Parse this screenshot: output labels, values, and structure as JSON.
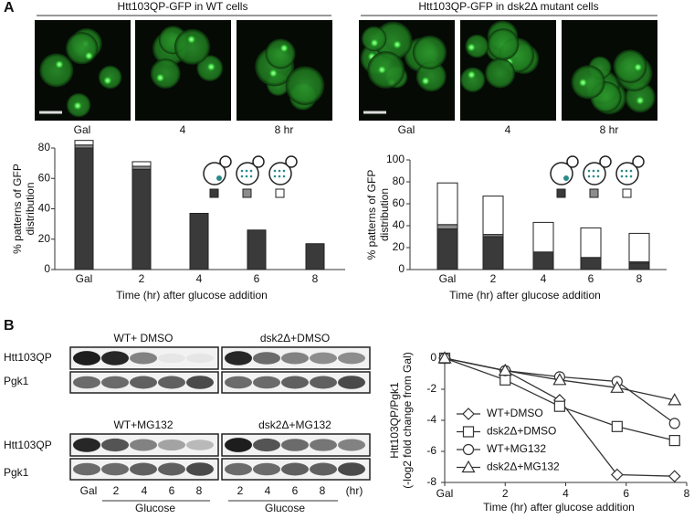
{
  "panels": [
    "A",
    "B"
  ],
  "panel_a": {
    "wt_title": "Htt103QP-GFP in WT cells",
    "mutant_title": "Htt103QP-GFP in dsk2Δ mutant cells",
    "wt_image_labels": [
      "Gal",
      "4",
      "8 hr"
    ],
    "mutant_image_labels": [
      "Gal",
      "4",
      "8 hr"
    ]
  },
  "panel_b": {
    "blot_titles": [
      "WT+ DMSO",
      "dsk2Δ+DMSO",
      "WT+MG132",
      "dsk2Δ+MG132"
    ],
    "row_labels": [
      "Htt103QP",
      "Pgk1",
      "Htt103QP",
      "Pgk1"
    ],
    "lanes_left": [
      "Gal",
      "2",
      "4",
      "6",
      "8"
    ],
    "lanes_right": [
      "2",
      "4",
      "6",
      "8",
      "(hr)"
    ],
    "glucose_labels": [
      "Glucose",
      "Glucose"
    ]
  },
  "chart_data": [
    {
      "type": "stacked_bar",
      "ylabel": [
        "% patterns of GFP",
        "distribution"
      ],
      "xlabel": "Time (hr) after glucose addition",
      "categories": [
        "Gal",
        "2",
        "4",
        "6",
        "8"
      ],
      "series": [
        {
          "color": "#3a3a3a",
          "values": [
            80,
            66,
            37,
            26,
            17
          ]
        },
        {
          "color": "#8c8c8c",
          "values": [
            2,
            2,
            0,
            0,
            0
          ]
        },
        {
          "color": "#ffffff",
          "values": [
            3,
            3,
            0,
            0,
            0
          ]
        }
      ],
      "ylim": [
        0,
        80
      ],
      "yticks": [
        0,
        20,
        40,
        60,
        80
      ]
    },
    {
      "type": "stacked_bar",
      "ylabel": [
        "% patterns of GFP",
        "distribution"
      ],
      "xlabel": "Time (hr) after glucose addition",
      "categories": [
        "Gal",
        "2",
        "4",
        "6",
        "8"
      ],
      "series": [
        {
          "color": "#3a3a3a",
          "values": [
            37,
            30,
            16,
            11,
            6
          ]
        },
        {
          "color": "#8c8c8c",
          "values": [
            4,
            2,
            0,
            0,
            1
          ]
        },
        {
          "color": "#ffffff",
          "values": [
            38,
            35,
            27,
            27,
            26
          ]
        }
      ],
      "ylim": [
        0,
        100
      ],
      "yticks": [
        0,
        20,
        40,
        60,
        80,
        100
      ]
    },
    {
      "type": "line",
      "ylabel": [
        "Htt103QP/Pgk1",
        "(-log2 fold change from Gal)"
      ],
      "xlabel": "Time (hr) after glucose addition",
      "x": [
        0,
        2,
        3.8,
        5.7,
        7.6
      ],
      "series": [
        {
          "name": "WT+DMSO",
          "marker": "diamond",
          "color": "#333333",
          "values": [
            0,
            -0.8,
            -2.7,
            -7.5,
            -7.6
          ]
        },
        {
          "name": "dsk2Δ+DMSO",
          "marker": "square",
          "color": "#333333",
          "values": [
            0,
            -1.4,
            -3.1,
            -4.4,
            -5.3
          ]
        },
        {
          "name": "WT+MG132",
          "marker": "circle",
          "color": "#333333",
          "values": [
            0,
            -0.8,
            -1.2,
            -1.5,
            -4.2
          ]
        },
        {
          "name": "dsk2Δ+MG132",
          "marker": "triangle",
          "color": "#333333",
          "values": [
            0,
            -0.8,
            -1.4,
            -1.9,
            -2.7
          ]
        }
      ],
      "xlim": [
        0,
        8
      ],
      "xticks": [
        {
          "value": 0,
          "label": "Gal"
        },
        2,
        4,
        6,
        8
      ],
      "ylim": [
        -8,
        0
      ],
      "yticks": [
        0,
        -2,
        -4,
        -6,
        -8
      ]
    }
  ]
}
